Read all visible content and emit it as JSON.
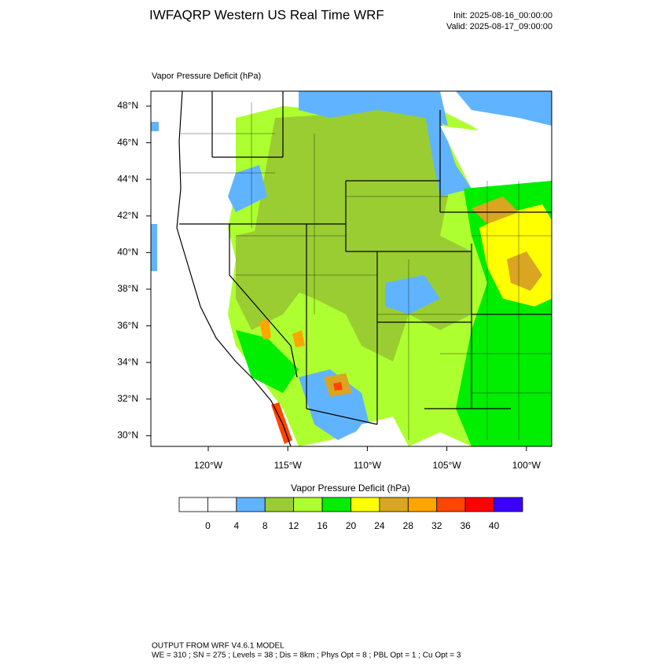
{
  "header": {
    "title": "IWFAQRP Western US Real Time WRF",
    "init": "Init: 2025-08-16_00:00:00",
    "valid": "Valid: 2025-08-17_09:00:00"
  },
  "map": {
    "label": "Vapor Pressure Deficit   (hPa)",
    "lat_labels": [
      "48°N",
      "46°N",
      "44°N",
      "42°N",
      "40°N",
      "38°N",
      "36°N",
      "34°N",
      "32°N",
      "30°N"
    ],
    "lon_labels": [
      "120°W",
      "115°W",
      "110°W",
      "105°W",
      "100°W"
    ]
  },
  "colorbar": {
    "title": "Vapor Pressure Deficit  (hPa)",
    "labels": [
      0,
      4,
      8,
      12,
      16,
      20,
      24,
      28,
      32,
      36,
      40
    ],
    "colors": [
      "#ffffff",
      "#ffffff",
      "#60b4ff",
      "#9acd32",
      "#adff2f",
      "#00ee00",
      "#ffff00",
      "#daa520",
      "#ffa500",
      "#ff4500",
      "#ff0000",
      "#3c00ff"
    ]
  },
  "footer": {
    "line1": "OUTPUT FROM WRF V4.6.1 MODEL",
    "line2": "WE = 310 ; SN = 275 ; Levels = 38 ; Dis = 8km ; Phys Opt = 8 ; PBL Opt = 1 ; Cu Opt = 3"
  }
}
